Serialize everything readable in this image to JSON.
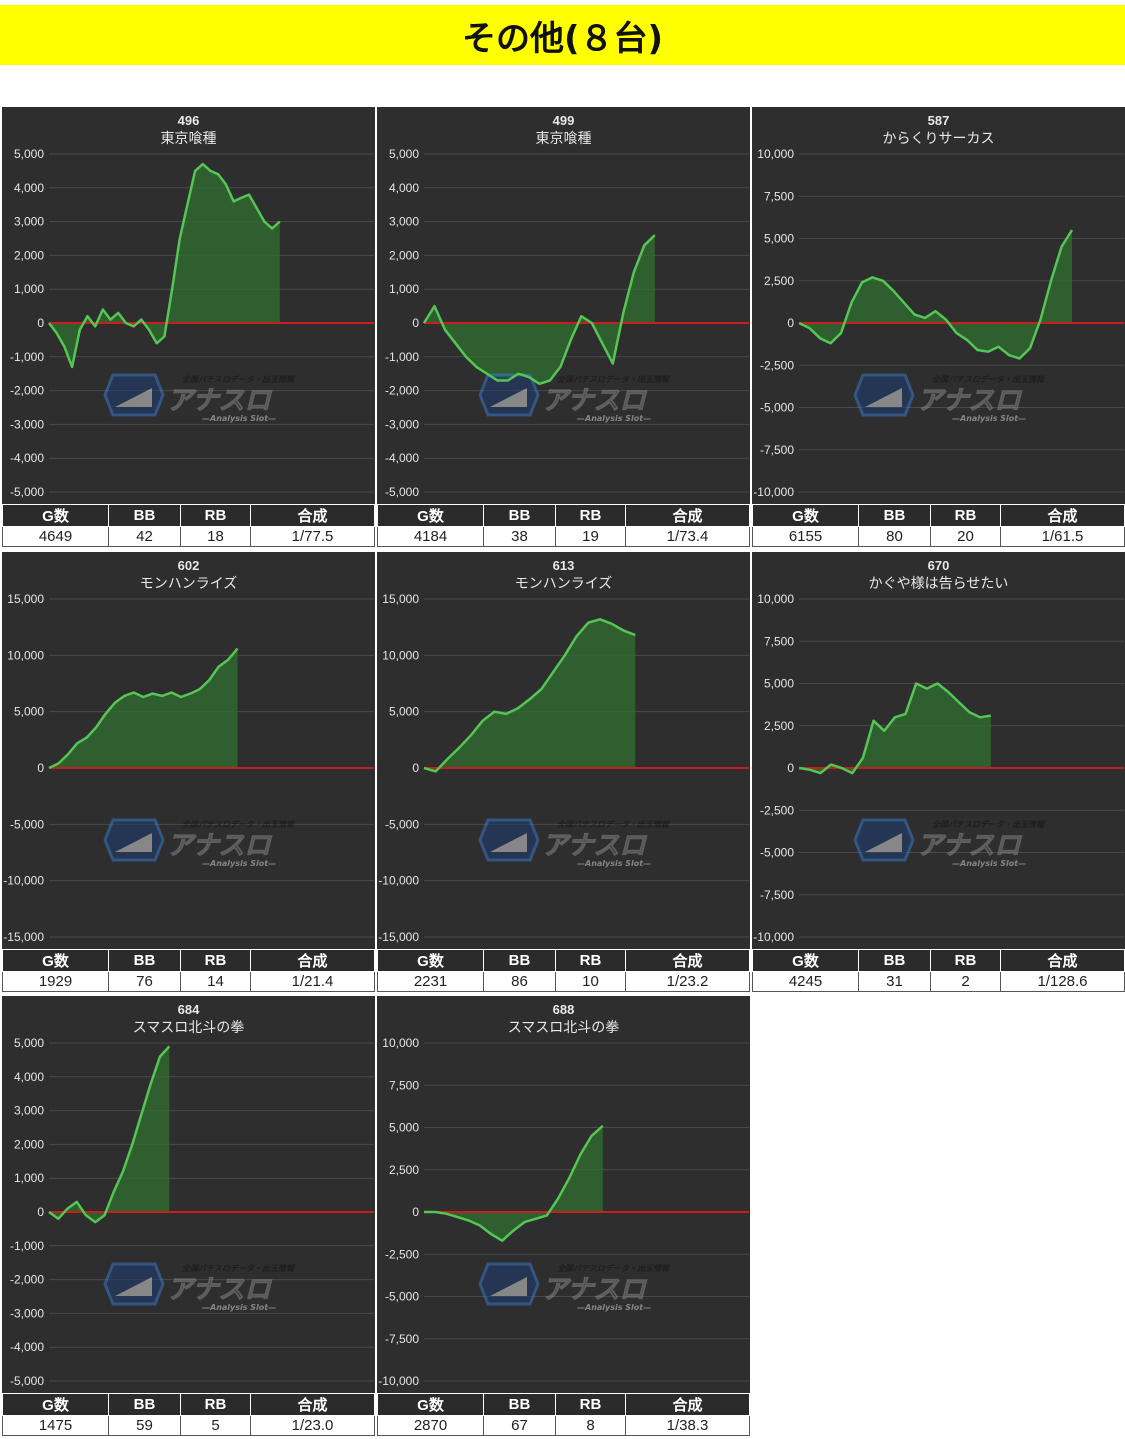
{
  "page": {
    "banner_title": "その他(８台)",
    "banner_color": "#ffff00"
  },
  "table_headers": {
    "games": "G数",
    "bb": "BB",
    "rb": "RB",
    "combined": "合成"
  },
  "watermark": {
    "brand": "アナスロ",
    "tagline": "全国パチスロデータ・出玉情報",
    "sub": "—Analysis Slot—"
  },
  "colors": {
    "panel_bg": "#2e2e2e",
    "line": "#55c655",
    "fill": "#2f6b2f",
    "zero_line": "#c81e1e",
    "grid": "#4a4a4a"
  },
  "panels": [
    {
      "number": "496",
      "machine": "東京喰種",
      "stats": {
        "games": "4649",
        "bb": "42",
        "rb": "18",
        "combined": "1/77.5"
      },
      "chart_data": {
        "type": "area",
        "ylim": [
          -5000,
          5000
        ],
        "yticks": [
          "5,000",
          "4,000",
          "3,000",
          "2,000",
          "1,000",
          "0",
          "-1,000",
          "-2,000",
          "-3,000",
          "-4,000",
          "-5,000"
        ],
        "x_end": 0.71,
        "y": [
          0,
          -300,
          -700,
          -1300,
          -200,
          200,
          -100,
          400,
          100,
          300,
          0,
          -100,
          100,
          -200,
          -600,
          -400,
          1000,
          2500,
          3500,
          4500,
          4700,
          4500,
          4400,
          4100,
          3600,
          3700,
          3800,
          3400,
          3000,
          2800,
          3000
        ]
      }
    },
    {
      "number": "499",
      "machine": "東京喰種",
      "stats": {
        "games": "4184",
        "bb": "38",
        "rb": "19",
        "combined": "1/73.4"
      },
      "chart_data": {
        "type": "area",
        "ylim": [
          -5000,
          5000
        ],
        "yticks": [
          "5,000",
          "4,000",
          "3,000",
          "2,000",
          "1,000",
          "0",
          "-1,000",
          "-2,000",
          "-3,000",
          "-4,000",
          "-5,000"
        ],
        "x_end": 0.71,
        "y": [
          0,
          500,
          -200,
          -600,
          -1000,
          -1300,
          -1500,
          -1700,
          -1700,
          -1500,
          -1600,
          -1800,
          -1700,
          -1300,
          -500,
          200,
          0,
          -600,
          -1200,
          300,
          1500,
          2300,
          2600
        ]
      }
    },
    {
      "number": "587",
      "machine": "からくりサーカス",
      "stats": {
        "games": "6155",
        "bb": "80",
        "rb": "20",
        "combined": "1/61.5"
      },
      "chart_data": {
        "type": "area",
        "ylim": [
          -10000,
          10000
        ],
        "yticks": [
          "10,000",
          "7,500",
          "5,000",
          "2,500",
          "0",
          "-2,500",
          "-5,000",
          "-7,500",
          "-10,000"
        ],
        "x_end": 0.84,
        "y": [
          0,
          -300,
          -900,
          -1200,
          -600,
          1200,
          2400,
          2700,
          2500,
          1900,
          1200,
          500,
          300,
          700,
          200,
          -600,
          -1000,
          -1600,
          -1700,
          -1400,
          -1900,
          -2100,
          -1500,
          200,
          2500,
          4500,
          5500
        ]
      }
    },
    {
      "number": "602",
      "machine": "モンハンライズ",
      "stats": {
        "games": "1929",
        "bb": "76",
        "rb": "14",
        "combined": "1/21.4"
      },
      "chart_data": {
        "type": "area",
        "ylim": [
          -15000,
          15000
        ],
        "yticks": [
          "15,000",
          "10,000",
          "5,000",
          "0",
          "-5,000",
          "-10,000",
          "-15,000"
        ],
        "x_end": 0.58,
        "y": [
          0,
          400,
          1200,
          2200,
          2700,
          3600,
          4800,
          5800,
          6400,
          6700,
          6300,
          6600,
          6400,
          6700,
          6300,
          6600,
          7000,
          7800,
          9000,
          9600,
          10600
        ]
      }
    },
    {
      "number": "613",
      "machine": "モンハンライズ",
      "stats": {
        "games": "2231",
        "bb": "86",
        "rb": "10",
        "combined": "1/23.2"
      },
      "chart_data": {
        "type": "area",
        "ylim": [
          -15000,
          15000
        ],
        "yticks": [
          "15,000",
          "10,000",
          "5,000",
          "0",
          "-5,000",
          "-10,000",
          "-15,000"
        ],
        "x_end": 0.65,
        "y": [
          0,
          -300,
          800,
          1800,
          2900,
          4200,
          5000,
          4800,
          5300,
          6100,
          7000,
          8500,
          10000,
          11700,
          12900,
          13200,
          12800,
          12200,
          11800
        ]
      }
    },
    {
      "number": "670",
      "machine": "かぐや様は告らせたい",
      "stats": {
        "games": "4245",
        "bb": "31",
        "rb": "2",
        "combined": "1/128.6"
      },
      "chart_data": {
        "type": "area",
        "ylim": [
          -10000,
          10000
        ],
        "yticks": [
          "10,000",
          "7,500",
          "5,000",
          "2,500",
          "0",
          "-2,500",
          "-5,000",
          "-7,500",
          "-10,000"
        ],
        "x_end": 0.59,
        "y": [
          0,
          -100,
          -300,
          200,
          0,
          -300,
          600,
          2800,
          2200,
          3000,
          3200,
          5000,
          4700,
          5000,
          4500,
          3900,
          3300,
          3000,
          3100
        ]
      }
    },
    {
      "number": "684",
      "machine": "スマスロ北斗の拳",
      "stats": {
        "games": "1475",
        "bb": "59",
        "rb": "5",
        "combined": "1/23.0"
      },
      "chart_data": {
        "type": "area",
        "ylim": [
          -5000,
          5000
        ],
        "yticks": [
          "5,000",
          "4,000",
          "3,000",
          "2,000",
          "1,000",
          "0",
          "-1,000",
          "-2,000",
          "-3,000",
          "-4,000",
          "-5,000"
        ],
        "x_end": 0.37,
        "y": [
          0,
          -200,
          100,
          300,
          -100,
          -300,
          -100,
          600,
          1200,
          2000,
          2900,
          3800,
          4600,
          4900
        ]
      }
    },
    {
      "number": "688",
      "machine": "スマスロ北斗の拳",
      "stats": {
        "games": "2870",
        "bb": "67",
        "rb": "8",
        "combined": "1/38.3"
      },
      "chart_data": {
        "type": "area",
        "ylim": [
          -10000,
          10000
        ],
        "yticks": [
          "10,000",
          "7,500",
          "5,000",
          "2,500",
          "0",
          "-2,500",
          "-5,000",
          "-7,500",
          "-10,000"
        ],
        "x_end": 0.55,
        "y": [
          0,
          0,
          -100,
          -300,
          -500,
          -800,
          -1300,
          -1700,
          -1100,
          -600,
          -400,
          -200,
          800,
          2000,
          3400,
          4500,
          5100
        ]
      }
    }
  ]
}
